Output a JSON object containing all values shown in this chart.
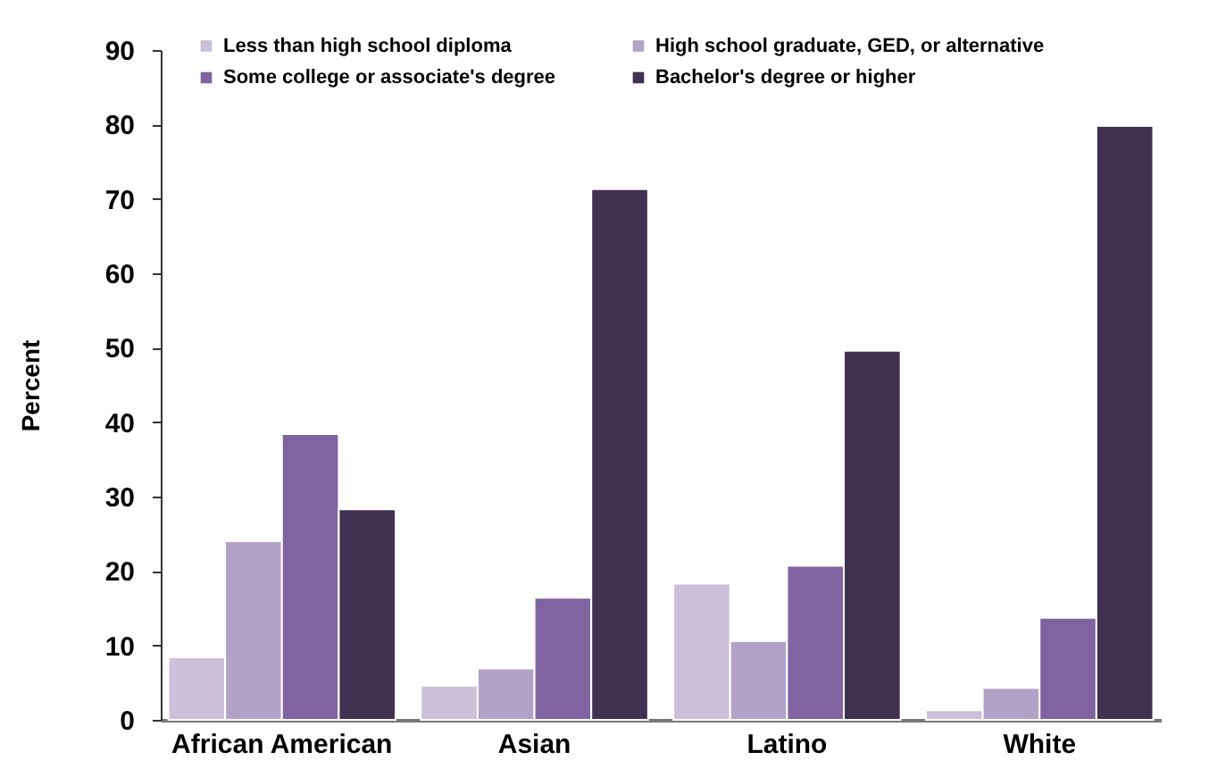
{
  "chart_data": {
    "type": "bar",
    "ylabel": "Percent",
    "categories": [
      "African American",
      "Asian",
      "Latino",
      "White"
    ],
    "series": [
      {
        "name": "Less than high school diploma",
        "color": "#cbc0da",
        "values": [
          8.4,
          4.6,
          18.3,
          1.3
        ]
      },
      {
        "name": "High school graduate, GED, or alternative",
        "color": "#b3a2c8",
        "values": [
          24,
          6.9,
          10.6,
          4.3
        ]
      },
      {
        "name": "Some college or associate's degree",
        "color": "#8064a1",
        "values": [
          38.4,
          16.4,
          20.7,
          13.7
        ]
      },
      {
        "name": "Bachelor's degree or higher",
        "color": "#403152",
        "values": [
          28.3,
          71.3,
          49.6,
          79.8
        ]
      }
    ],
    "ylim": [
      0,
      90
    ],
    "yticks": [
      0,
      10,
      20,
      30,
      40,
      50,
      60,
      70,
      80,
      90
    ],
    "grid": false,
    "legend": "top"
  }
}
